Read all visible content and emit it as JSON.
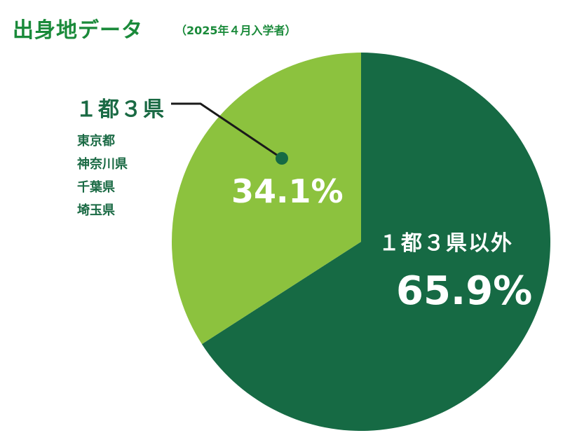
{
  "header": {
    "title": "出身地データ",
    "subtitle": "（2025年４月入学者）"
  },
  "chart_data": {
    "type": "pie",
    "title": "出身地データ",
    "subtitle": "（2025年４月入学者）",
    "slices": [
      {
        "label": "１都３県以外",
        "value": 65.9,
        "display": "65.9%",
        "color": "#166a44"
      },
      {
        "label": "１都３県",
        "value": 34.1,
        "display": "34.1%",
        "color": "#8cc23e",
        "members": [
          "東京都",
          "神奈川県",
          "千葉県",
          "埼玉県"
        ]
      }
    ],
    "legend": "none"
  },
  "colors": {
    "title": "#1a8a3a",
    "label_dark": "#1a6a44",
    "leader": "#1a1a1a",
    "leader_dot": "#166a44"
  }
}
